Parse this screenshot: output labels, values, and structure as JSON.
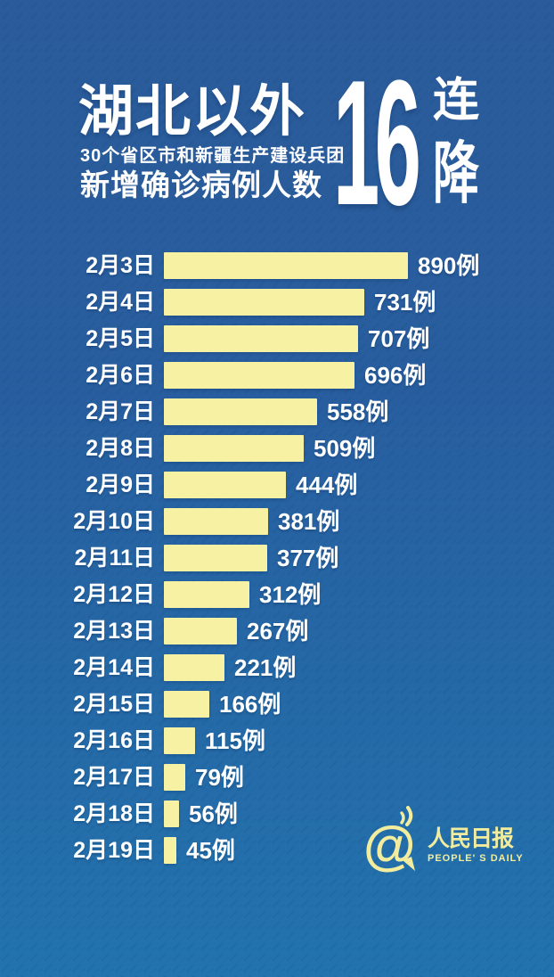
{
  "header": {
    "title_main": "湖北以外",
    "subtitle": "30个省区市和新疆生产建设兵团",
    "subtitle2": "新增确诊病例人数",
    "big_number": "16",
    "suffix_top": "连",
    "suffix_bottom": "降"
  },
  "chart_data": {
    "type": "bar",
    "orientation": "horizontal",
    "title": "湖北以外30个省区市和新疆生产建设兵团新增确诊病例人数 16连降",
    "categories": [
      "2月3日",
      "2月4日",
      "2月5日",
      "2月6日",
      "2月7日",
      "2月8日",
      "2月9日",
      "2月10日",
      "2月11日",
      "2月12日",
      "2月13日",
      "2月14日",
      "2月15日",
      "2月16日",
      "2月17日",
      "2月18日",
      "2月19日"
    ],
    "values": [
      890,
      731,
      707,
      696,
      558,
      509,
      444,
      381,
      377,
      312,
      267,
      221,
      166,
      115,
      79,
      56,
      45
    ],
    "unit_suffix": "例",
    "xlim": [
      0,
      890
    ],
    "grid": false,
    "legend": false,
    "bar_color": "#f6f1a3",
    "value_label_color": "#ffffff"
  },
  "footer": {
    "logo_at_symbol": "@",
    "logo_cn": "人民日报",
    "logo_en": "PEOPLE' S DAILY",
    "logo_color": "#f2ed9e"
  },
  "colors": {
    "background_top": "#2b5b9a",
    "background_bottom": "#2273ae",
    "bar": "#f6f1a3",
    "text": "#ffffff"
  }
}
